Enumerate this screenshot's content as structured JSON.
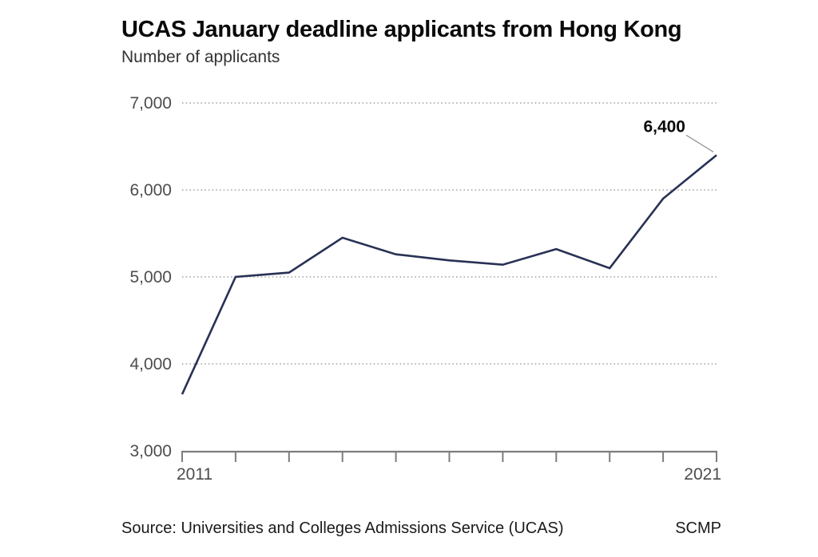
{
  "chart": {
    "title": "UCAS January deadline applicants from Hong Kong",
    "subtitle": "Number of applicants"
  },
  "footer": {
    "source": "Source: Universities and Colleges Admissions Service (UCAS)",
    "brand": "SCMP"
  },
  "chart_data": {
    "type": "line",
    "title": "UCAS January deadline applicants from Hong Kong",
    "subtitle": "Number of applicants",
    "series_name": "Number of applicants",
    "x": [
      2011,
      2012,
      2013,
      2014,
      2015,
      2016,
      2017,
      2018,
      2019,
      2020,
      2021
    ],
    "values": [
      3650,
      5000,
      5050,
      5450,
      5260,
      5190,
      5140,
      5320,
      5100,
      5900,
      6400
    ],
    "ylim": [
      3000,
      7000
    ],
    "yticks": [
      3000,
      4000,
      5000,
      6000,
      7000
    ],
    "ytick_labels": [
      "3,000",
      "4,000",
      "5,000",
      "6,000",
      "7,000"
    ],
    "xtick_first_label": "2011",
    "xtick_last_label": "2021",
    "grid": "horizontal dotted",
    "legend": "none",
    "annotation": {
      "x": 2021,
      "y": 6400,
      "text": "6,400"
    },
    "colors": {
      "line": "#283155",
      "gridline": "#9e9e9e",
      "axis": "#7d7d7d",
      "tick_label": "#4d4d4d",
      "annotation_text": "#0a0a0a",
      "annotation_leader": "#8a8a8a"
    }
  }
}
